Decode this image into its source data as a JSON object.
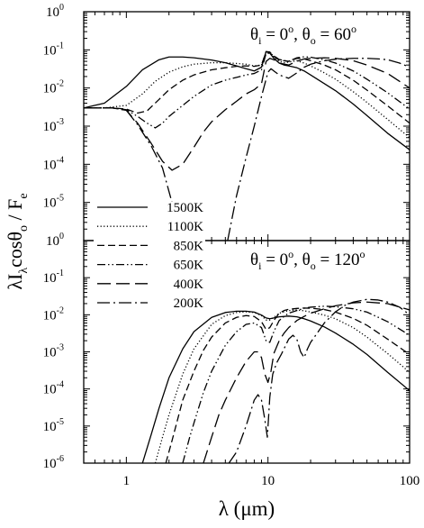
{
  "chart_data": {
    "type": "line",
    "x_axis": {
      "label": "λ (μm)",
      "scale": "log",
      "range": [
        0.5,
        100
      ],
      "tick_labels": [
        {
          "value": 1,
          "label": "1"
        },
        {
          "value": 10,
          "label": "10"
        },
        {
          "value": 100,
          "label": "100"
        }
      ]
    },
    "y_axis": {
      "label": "λI",
      "label_sub1": "λ",
      "label_mid": "cosθ",
      "label_sub2": "o",
      "label_end": " / F",
      "label_sub3": "e",
      "scale": "log"
    },
    "legend": {
      "placement": "left, between panels",
      "entries": [
        {
          "label": "1500K",
          "dash": "solid"
        },
        {
          "label": "1100K",
          "dash": "dotted"
        },
        {
          "label": "850K",
          "dash": "dashed"
        },
        {
          "label": "650K",
          "dash": "dash-dot-dot"
        },
        {
          "label": "400K",
          "dash": "long-dash"
        },
        {
          "label": "200K",
          "dash": "dash-dot"
        }
      ]
    },
    "panels": [
      {
        "id": "top",
        "annotation": {
          "theta": "θ",
          "sub_i": "i",
          "eq_i": " = 0",
          "sup": "o",
          "comma": ", θ",
          "sub_o": "o",
          "eq_o": " = 60"
        },
        "y_range": [
          1e-06,
          1
        ],
        "y_tick_labels": [
          {
            "base": "10",
            "exp": "0",
            "value": 1
          },
          {
            "base": "10",
            "exp": "-1",
            "value": 0.1
          },
          {
            "base": "10",
            "exp": "-2",
            "value": 0.01
          },
          {
            "base": "10",
            "exp": "-3",
            "value": 0.001
          },
          {
            "base": "10",
            "exp": "-4",
            "value": 0.0001
          },
          {
            "base": "10",
            "exp": "-5",
            "value": 1e-05
          }
        ],
        "series": [
          {
            "name": "1500K",
            "x": [
              0.5,
              0.7,
              1.0,
              1.3,
              1.7,
              2.0,
              2.5,
              3,
              4,
              5,
              6,
              7,
              8,
              9,
              9.7,
              10.3,
              11,
              12,
              13,
              14,
              16,
              18,
              20,
              25,
              30,
              40,
              50,
              70,
              100
            ],
            "y": [
              0.003,
              0.004,
              0.011,
              0.03,
              0.055,
              0.065,
              0.065,
              0.062,
              0.054,
              0.046,
              0.038,
              0.032,
              0.028,
              0.035,
              0.09,
              0.082,
              0.06,
              0.045,
              0.04,
              0.038,
              0.034,
              0.028,
              0.022,
              0.013,
              0.0085,
              0.0038,
              0.0019,
              0.00065,
              0.00024
            ]
          },
          {
            "name": "1100K",
            "x": [
              0.5,
              0.7,
              1.0,
              1.3,
              1.6,
              2.0,
              2.5,
              3,
              4,
              5,
              6,
              7,
              8,
              9,
              9.7,
              10.3,
              11,
              12,
              13,
              14,
              16,
              18,
              20,
              25,
              30,
              40,
              50,
              70,
              100
            ],
            "y": [
              0.003,
              0.003,
              0.0035,
              0.007,
              0.015,
              0.026,
              0.036,
              0.042,
              0.046,
              0.046,
              0.044,
              0.042,
              0.038,
              0.04,
              0.09,
              0.085,
              0.064,
              0.05,
              0.046,
              0.048,
              0.052,
              0.045,
              0.038,
              0.025,
              0.017,
              0.008,
              0.0042,
              0.0015,
              0.0005
            ]
          },
          {
            "name": "850K",
            "x": [
              0.5,
              0.8,
              1.0,
              1.2,
              1.4,
              1.7,
              2.0,
              2.5,
              3,
              4,
              5,
              6,
              7,
              8,
              9,
              9.7,
              10.3,
              11,
              12,
              14,
              16,
              18,
              20,
              25,
              30,
              40,
              50,
              70,
              100
            ],
            "y": [
              0.003,
              0.003,
              0.0028,
              0.0022,
              0.0025,
              0.005,
              0.009,
              0.016,
              0.022,
              0.03,
              0.034,
              0.037,
              0.038,
              0.037,
              0.04,
              0.09,
              0.088,
              0.068,
              0.054,
              0.05,
              0.06,
              0.058,
              0.052,
              0.04,
              0.03,
              0.016,
              0.0088,
              0.0034,
              0.0012
            ]
          },
          {
            "name": "650K",
            "x": [
              0.5,
              0.8,
              1.0,
              1.2,
              1.4,
              1.6,
              1.8,
              2.0,
              2.5,
              3,
              4,
              5,
              6,
              7,
              8,
              9,
              9.7,
              10.3,
              11,
              12,
              14,
              16,
              18,
              20,
              25,
              30,
              40,
              50,
              70,
              100
            ],
            "y": [
              0.003,
              0.003,
              0.0027,
              0.0018,
              0.0012,
              0.0009,
              0.0012,
              0.0018,
              0.0035,
              0.006,
              0.012,
              0.016,
              0.019,
              0.022,
              0.024,
              0.03,
              0.08,
              0.082,
              0.07,
              0.056,
              0.05,
              0.062,
              0.066,
              0.064,
              0.055,
              0.045,
              0.028,
              0.017,
              0.0075,
              0.0028
            ]
          },
          {
            "name": "400K",
            "x": [
              0.5,
              0.8,
              1.0,
              1.2,
              1.5,
              1.8,
              2.1,
              2.5,
              3,
              3.5,
              4,
              5,
              6,
              7,
              8,
              9,
              9.7,
              10.3,
              11,
              12,
              14,
              16,
              18,
              20,
              25,
              30,
              40,
              50,
              70,
              100
            ],
            "y": [
              0.003,
              0.003,
              0.0026,
              0.0012,
              0.00035,
              0.00012,
              7e-05,
              0.0001,
              0.00028,
              0.0007,
              0.0013,
              0.0027,
              0.0045,
              0.007,
              0.009,
              0.013,
              0.05,
              0.06,
              0.055,
              0.045,
              0.04,
              0.05,
              0.058,
              0.06,
              0.062,
              0.06,
              0.052,
              0.04,
              0.024,
              0.01
            ]
          },
          {
            "name": "200K",
            "x": [
              0.5,
              0.8,
              1.0,
              1.2,
              1.5,
              1.8,
              2.1,
              2.6,
              3.0,
              3.5,
              4,
              5,
              6,
              7,
              8,
              9,
              10,
              10.5,
              11,
              12,
              14,
              16,
              18,
              20,
              25,
              30,
              40,
              50,
              60,
              70,
              85,
              100
            ],
            "y": [
              0.003,
              0.003,
              0.0026,
              0.0011,
              0.0003,
              8e-05,
              1e-05,
              1e-06,
              1e-07,
              1e-07,
              5e-08,
              5e-07,
              1.5e-05,
              0.00015,
              0.001,
              0.006,
              0.026,
              0.032,
              0.028,
              0.022,
              0.018,
              0.025,
              0.035,
              0.042,
              0.052,
              0.057,
              0.06,
              0.06,
              0.058,
              0.055,
              0.045,
              0.035
            ]
          }
        ]
      },
      {
        "id": "bottom",
        "annotation": {
          "theta": "θ",
          "sub_i": "i",
          "eq_i": " = 0",
          "sup": "o",
          "comma": ", θ",
          "sub_o": "o",
          "eq_o": " = 120"
        },
        "y_range": [
          1e-06,
          1
        ],
        "y_tick_labels": [
          {
            "base": "10",
            "exp": "0",
            "value": 1
          },
          {
            "base": "10",
            "exp": "-1",
            "value": 0.1
          },
          {
            "base": "10",
            "exp": "-2",
            "value": 0.01
          },
          {
            "base": "10",
            "exp": "-3",
            "value": 0.001
          },
          {
            "base": "10",
            "exp": "-4",
            "value": 0.0001
          },
          {
            "base": "10",
            "exp": "-5",
            "value": 1e-05
          },
          {
            "base": "10",
            "exp": "-6",
            "value": 1e-06
          }
        ],
        "series": [
          {
            "name": "1500K",
            "x": [
              1.3,
              1.5,
              1.7,
              2.0,
              2.5,
              3,
              4,
              5,
              6,
              7,
              8,
              9,
              9.7,
              10.3,
              11,
              12,
              14,
              16,
              18,
              20,
              25,
              30,
              40,
              50,
              70,
              100
            ],
            "y": [
              1e-06,
              6e-06,
              3e-05,
              0.0002,
              0.0012,
              0.0035,
              0.0085,
              0.0115,
              0.0125,
              0.0125,
              0.0118,
              0.0098,
              0.0082,
              0.0078,
              0.0082,
              0.0088,
              0.0092,
              0.0088,
              0.0078,
              0.0068,
              0.0047,
              0.0032,
              0.0016,
              0.00085,
              0.00028,
              9e-05
            ]
          },
          {
            "name": "1100K",
            "x": [
              1.6,
              1.8,
              2.0,
              2.5,
              3,
              4,
              5,
              6,
              7,
              8,
              9,
              9.7,
              10.3,
              11,
              12,
              14,
              16,
              18,
              20,
              25,
              30,
              40,
              50,
              70,
              100
            ],
            "y": [
              1e-06,
              5e-06,
              2e-05,
              0.00025,
              0.0012,
              0.0055,
              0.0095,
              0.0115,
              0.012,
              0.0115,
              0.0095,
              0.0072,
              0.0072,
              0.0085,
              0.011,
              0.013,
              0.0135,
              0.0128,
              0.0118,
              0.0098,
              0.0078,
              0.0045,
              0.0025,
              0.0009,
              0.00028
            ]
          },
          {
            "name": "850K",
            "x": [
              1.9,
              2.1,
              2.5,
              3,
              3.5,
              4,
              5,
              6,
              7,
              8,
              9,
              9.7,
              10.3,
              11,
              12,
              13,
              14,
              16,
              18,
              20,
              25,
              30,
              40,
              50,
              70,
              100
            ],
            "y": [
              1e-06,
              4e-06,
              5e-05,
              0.0003,
              0.0011,
              0.0025,
              0.006,
              0.0085,
              0.0095,
              0.009,
              0.0065,
              0.004,
              0.0045,
              0.007,
              0.011,
              0.013,
              0.014,
              0.0148,
              0.0152,
              0.015,
              0.0138,
              0.0118,
              0.008,
              0.0052,
              0.0022,
              0.00085
            ]
          },
          {
            "name": "650K",
            "x": [
              2.5,
              2.8,
              3,
              3.5,
              4,
              5,
              6,
              7,
              8,
              9,
              9.7,
              10.3,
              11,
              12,
              13,
              14,
              16,
              18,
              20,
              25,
              30,
              40,
              50,
              70,
              100
            ],
            "y": [
              1e-06,
              5e-06,
              1.2e-05,
              8e-05,
              0.0003,
              0.0015,
              0.0035,
              0.0055,
              0.006,
              0.0045,
              0.002,
              0.0018,
              0.0035,
              0.007,
              0.009,
              0.011,
              0.013,
              0.015,
              0.016,
              0.017,
              0.0165,
              0.0145,
              0.0118,
              0.0065,
              0.0028
            ]
          },
          {
            "name": "400K",
            "x": [
              3.5,
              4,
              4.5,
              5,
              6,
              7,
              8,
              8.5,
              9,
              9.5,
              10,
              10.5,
              11,
              12,
              13,
              14,
              16,
              18,
              20,
              25,
              30,
              40,
              50,
              70,
              100
            ],
            "y": [
              1e-06,
              5e-06,
              2e-05,
              5e-05,
              0.0002,
              0.00055,
              0.001,
              0.001,
              0.0007,
              0.00025,
              0.00015,
              0.0003,
              0.0009,
              0.002,
              0.0032,
              0.0045,
              0.007,
              0.009,
              0.011,
              0.0145,
              0.0175,
              0.021,
              0.022,
              0.02,
              0.0135
            ]
          },
          {
            "name": "200K",
            "x": [
              5.3,
              6,
              7,
              8,
              8.5,
              9,
              9.5,
              9.9,
              10.3,
              10.8,
              11.5,
              12.5,
              14,
              15,
              16,
              17,
              18,
              19,
              20,
              25,
              30,
              35,
              40,
              50,
              60,
              70,
              85,
              100
            ],
            "y": [
              1e-06,
              2e-06,
              1e-05,
              5e-05,
              7e-05,
              5e-05,
              1.5e-05,
              5e-06,
              6e-05,
              0.00025,
              0.0005,
              0.0009,
              0.0022,
              0.0028,
              0.0022,
              0.001,
              0.0007,
              0.0012,
              0.0018,
              0.006,
              0.012,
              0.018,
              0.022,
              0.026,
              0.025,
              0.022,
              0.016,
              0.01
            ]
          }
        ]
      }
    ]
  }
}
